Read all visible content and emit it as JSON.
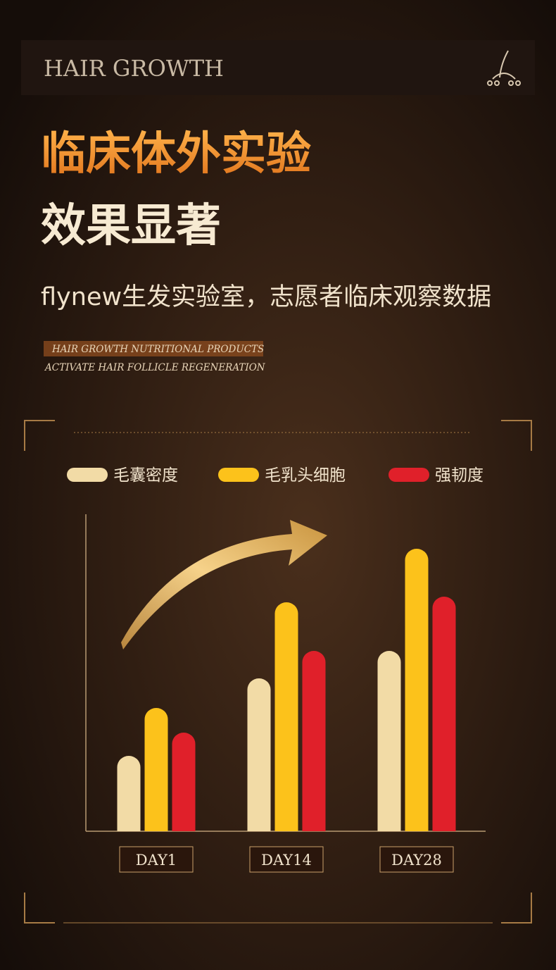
{
  "header": {
    "title": "HAIR GROWTH"
  },
  "headline": {
    "line1": "临床体外实验",
    "line2": "效果显著"
  },
  "subtitle": "flynew生发实验室，志愿者临床观察数据",
  "tagline": {
    "line1": "HAIR GROWTH NUTRITIONAL PRODUCTS",
    "line2": "ACTIVATE HAIR FOLLICLE REGENERATION"
  },
  "chart_data": {
    "type": "bar",
    "categories": [
      "DAY1",
      "DAY14",
      "DAY28"
    ],
    "series": [
      {
        "name": "毛囊密度",
        "color": "#f2dba6",
        "values": [
          107,
          217,
          256
        ]
      },
      {
        "name": "毛乳头细胞",
        "color": "#fcc21b",
        "values": [
          175,
          325,
          401
        ]
      },
      {
        "name": "强韧度",
        "color": "#e0202a",
        "values": [
          140,
          256,
          333
        ]
      }
    ],
    "ylim": [
      0,
      450
    ]
  }
}
